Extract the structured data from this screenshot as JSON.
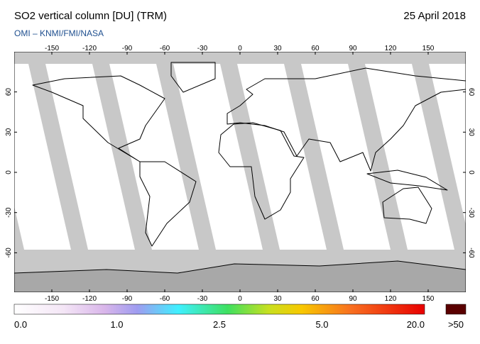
{
  "header": {
    "title": "SO2 vertical column [DU] (TRM)",
    "date": "25 April 2018",
    "credit": "OMI  –  KNMI/FMI/NASA"
  },
  "map": {
    "lon_ticks": [
      -150,
      -120,
      -90,
      -60,
      -30,
      0,
      30,
      60,
      90,
      120,
      150
    ],
    "lat_ticks": [
      60,
      30,
      0,
      -30,
      -60
    ]
  },
  "colorbar": {
    "labels": [
      "0.0",
      "1.0",
      "2.5",
      "5.0",
      "20.0"
    ],
    "overflow_label": ">50"
  }
}
